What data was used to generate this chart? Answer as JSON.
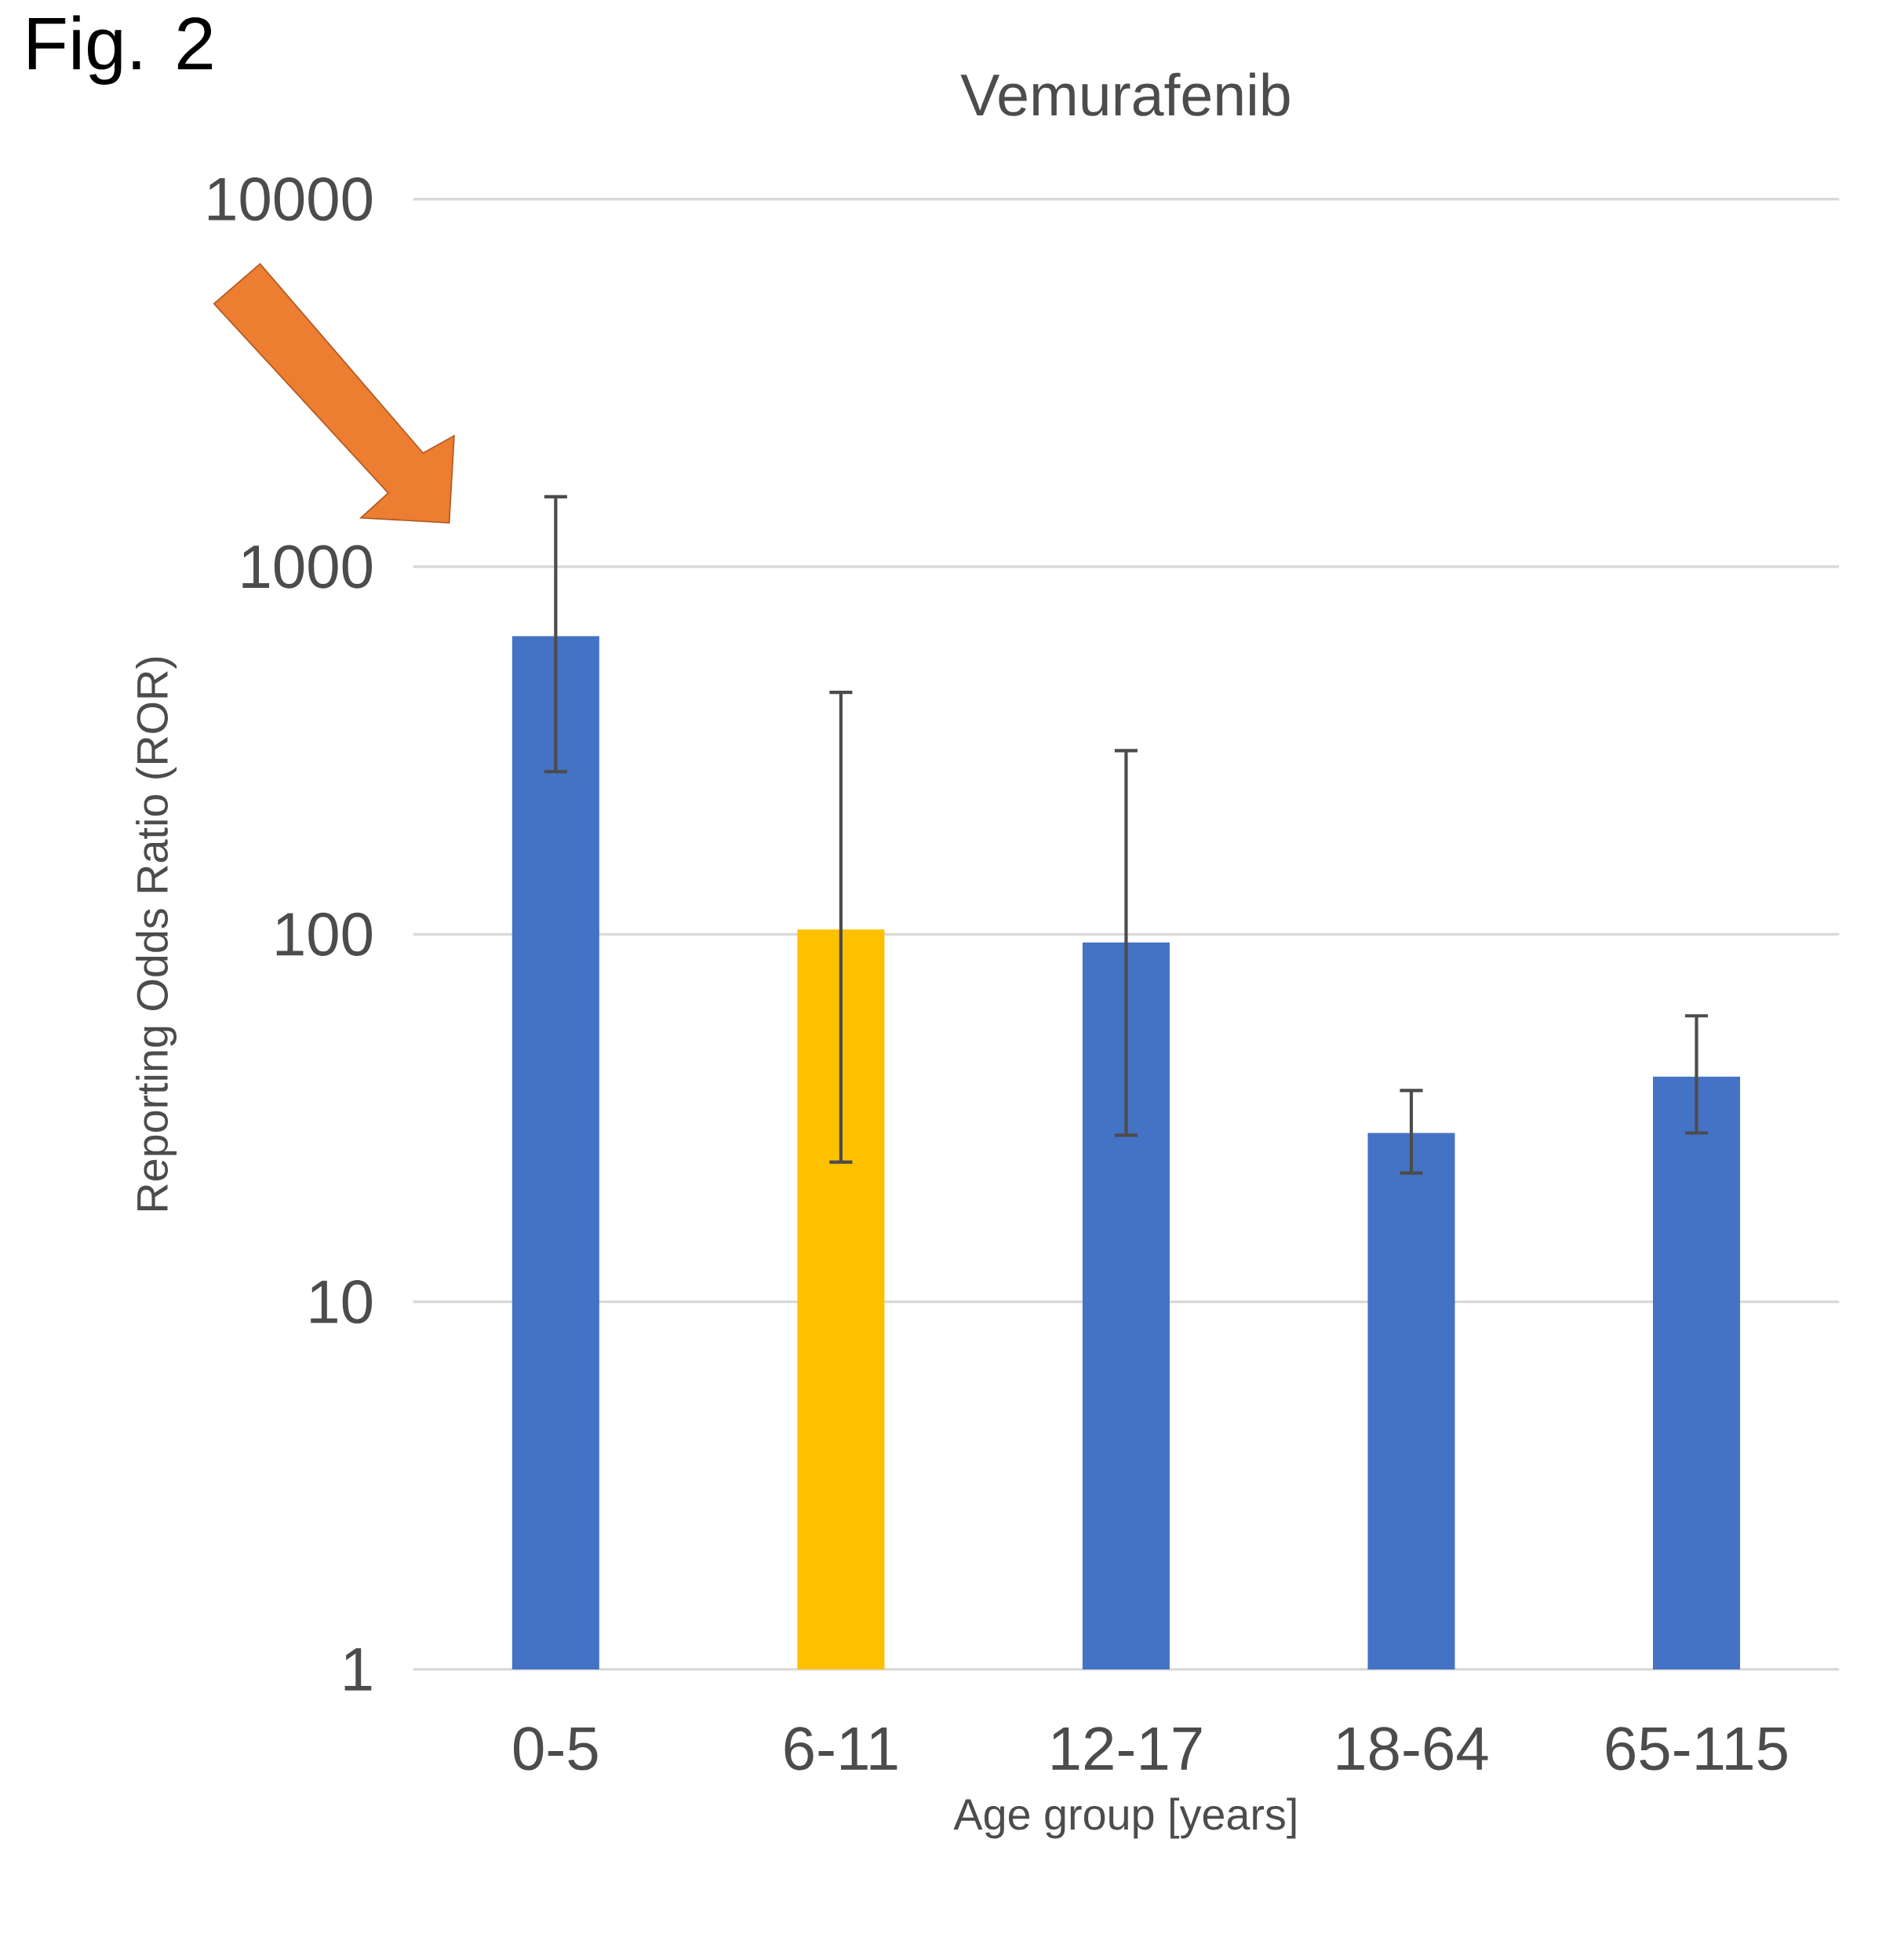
{
  "chart_data": {
    "type": "bar",
    "title": "Vemurafenib",
    "xlabel": "Age group [years]",
    "ylabel": "Reporting Odds Ratio (ROR)",
    "categories": [
      "0-5",
      "6-11",
      "12-17",
      "18-64",
      "65-115"
    ],
    "values": [
      647,
      103,
      95,
      28.8,
      41
    ],
    "colors": [
      "#4472c4",
      "#ffc000",
      "#4472c4",
      "#4472c4",
      "#4472c4"
    ],
    "errors": [
      [
        277,
        1550
      ],
      [
        24,
        455
      ],
      [
        28.4,
        316
      ],
      [
        22.4,
        37.6
      ],
      [
        28.8,
        60
      ]
    ],
    "log": "y",
    "ylim": [
      1,
      10000
    ],
    "yticks": [
      1,
      10,
      100,
      1000,
      10000
    ],
    "grid": "y",
    "annotations": [
      "Fig. 2"
    ]
  }
}
